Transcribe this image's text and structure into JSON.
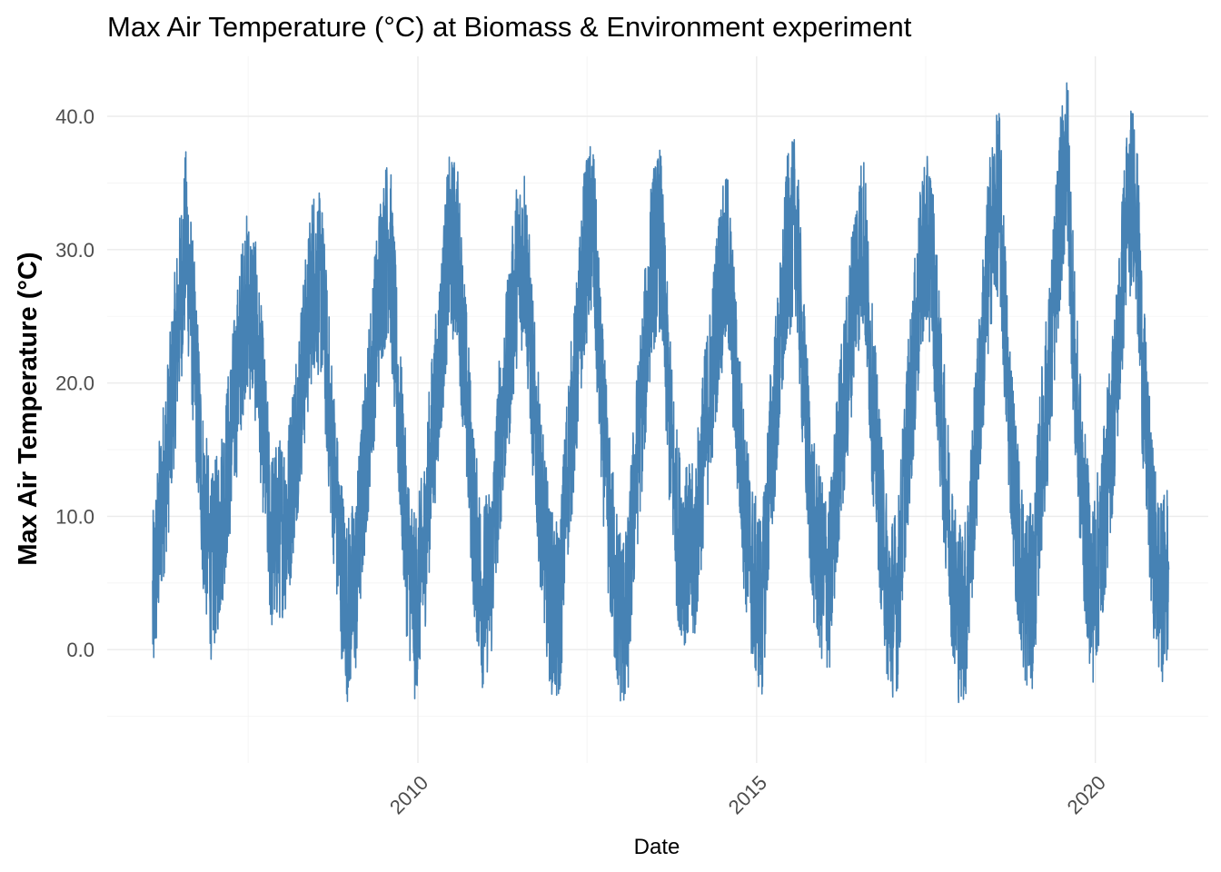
{
  "chart_data": {
    "type": "line",
    "title": "Max Air Temperature (°C) at Biomass & Environment experiment",
    "xlabel": "Date",
    "ylabel": "Max Air Temperature (°C)",
    "x_range": [
      "2006-01-27",
      "2021-02-01"
    ],
    "xlim": [
      "2005-06-01",
      "2021-09-01"
    ],
    "ylim": [
      -8.5,
      44.5
    ],
    "x_ticks": [
      "2010",
      "2015",
      "2020"
    ],
    "x_tick_dates": [
      "2010-01-01",
      "2015-01-01",
      "2020-01-01"
    ],
    "x_minor_dates": [
      "2007-07-01",
      "2012-07-01",
      "2017-07-01"
    ],
    "y_ticks": [
      0,
      10,
      20,
      30,
      40
    ],
    "y_tick_labels": [
      "0.0",
      "10.0",
      "20.0",
      "30.0",
      "40.0"
    ],
    "y_minor": [
      -5,
      5,
      15,
      25,
      35
    ],
    "grid": true,
    "legend": "none",
    "line_color": "#4682B4",
    "series": [
      {
        "x": [
          "2006-02-01",
          "2006-03-15",
          "2006-05-01",
          "2006-06-15",
          "2006-08-01",
          "2006-09-15",
          "2006-11-01",
          "2006-12-15",
          "2007-02-01",
          "2007-03-15",
          "2007-05-01",
          "2007-06-15",
          "2007-08-01",
          "2007-09-15",
          "2007-11-01",
          "2007-12-15",
          "2008-02-01",
          "2008-03-15",
          "2008-05-01",
          "2008-06-15",
          "2008-08-01",
          "2008-09-15",
          "2008-11-01",
          "2008-12-15",
          "2009-02-01",
          "2009-03-15",
          "2009-05-01",
          "2009-06-15",
          "2009-08-01",
          "2009-09-15",
          "2009-11-01",
          "2009-12-15",
          "2010-02-01",
          "2010-03-15",
          "2010-05-01",
          "2010-06-15",
          "2010-08-01",
          "2010-09-15",
          "2010-11-01",
          "2010-12-15",
          "2011-02-01",
          "2011-03-15",
          "2011-05-01",
          "2011-06-15",
          "2011-08-01",
          "2011-09-15",
          "2011-11-01",
          "2011-12-15",
          "2012-02-01",
          "2012-03-15",
          "2012-05-01",
          "2012-06-15",
          "2012-08-01",
          "2012-09-15",
          "2012-11-01",
          "2012-12-15",
          "2013-02-01",
          "2013-03-15",
          "2013-05-01",
          "2013-06-15",
          "2013-08-01",
          "2013-09-15",
          "2013-11-01",
          "2013-12-15",
          "2014-02-01",
          "2014-03-15",
          "2014-05-01",
          "2014-06-15",
          "2014-08-01",
          "2014-09-15",
          "2014-11-01",
          "2014-12-15",
          "2015-02-01",
          "2015-03-15",
          "2015-05-01",
          "2015-06-15",
          "2015-08-01",
          "2015-09-15",
          "2015-11-01",
          "2015-12-15",
          "2016-02-01",
          "2016-03-15",
          "2016-05-01",
          "2016-06-15",
          "2016-08-01",
          "2016-09-15",
          "2016-11-01",
          "2016-12-15",
          "2017-02-01",
          "2017-03-15",
          "2017-05-01",
          "2017-06-15",
          "2017-08-01",
          "2017-09-15",
          "2017-11-01",
          "2017-12-15",
          "2018-02-01",
          "2018-03-15",
          "2018-05-01",
          "2018-06-15",
          "2018-08-01",
          "2018-09-15",
          "2018-11-01",
          "2018-12-15",
          "2019-02-01",
          "2019-03-15",
          "2019-05-01",
          "2019-06-15",
          "2019-08-01",
          "2019-09-15",
          "2019-11-01",
          "2019-12-15",
          "2020-02-01",
          "2020-03-15",
          "2020-05-01",
          "2020-06-15",
          "2020-08-01",
          "2020-09-15",
          "2020-11-01",
          "2020-12-15",
          "2021-01-31"
        ],
        "y": [
          3,
          10,
          16,
          24,
          31,
          22,
          11,
          6,
          9,
          14,
          20,
          26,
          25,
          18,
          8,
          9,
          10,
          16,
          22,
          28,
          27,
          17,
          8,
          3,
          5,
          13,
          21,
          28,
          31,
          19,
          8,
          3,
          7,
          15,
          22,
          30,
          30,
          20,
          9,
          4,
          6,
          15,
          21,
          28,
          30,
          19,
          10,
          4,
          2,
          13,
          20,
          29,
          32,
          19,
          9,
          3,
          2,
          12,
          20,
          29,
          31,
          18,
          9,
          7,
          7,
          14,
          20,
          27,
          29,
          19,
          10,
          5,
          3,
          14,
          21,
          30,
          32,
          19,
          9,
          6,
          5,
          14,
          20,
          28,
          31,
          19,
          10,
          3,
          4,
          14,
          22,
          30,
          30,
          19,
          10,
          3,
          3,
          12,
          22,
          31,
          34,
          20,
          10,
          4,
          4,
          14,
          21,
          31,
          38,
          20,
          10,
          4,
          8,
          14,
          22,
          32,
          35,
          20,
          9,
          4,
          6
        ]
      }
    ]
  }
}
